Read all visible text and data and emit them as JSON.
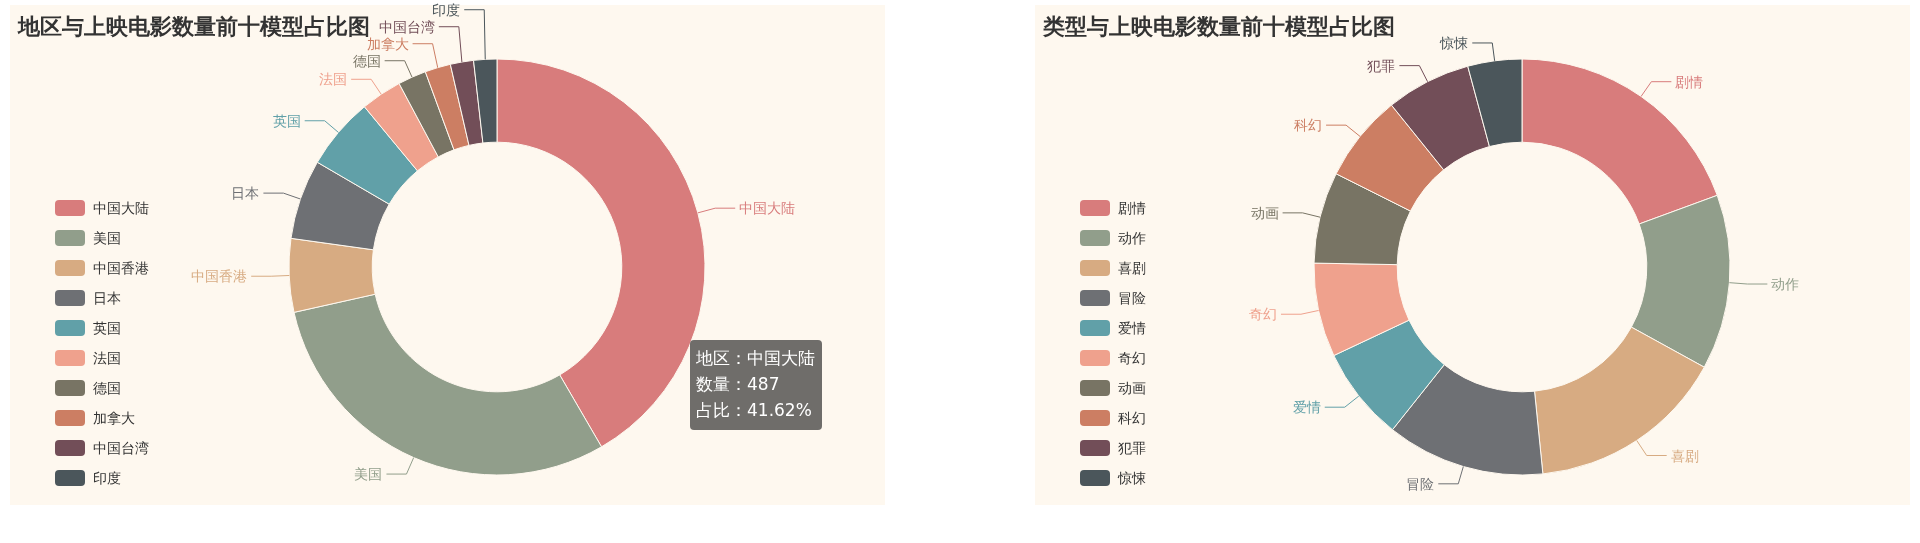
{
  "chart_data": [
    {
      "type": "donut",
      "title": "地区与上映电影数量前十模型占比图",
      "legend": "left",
      "categories": [
        "中国大陆",
        "美国",
        "中国香港",
        "日本",
        "英国",
        "法国",
        "德国",
        "加拿大",
        "中国台湾",
        "印度"
      ],
      "values": [
        41.62,
        29.88,
        5.7,
        6.2,
        5.6,
        3.2,
        2.2,
        2.0,
        1.8,
        1.8
      ],
      "colors": [
        "#d87c7c",
        "#919e8b",
        "#d7ab82",
        "#6e7074",
        "#61a0a8",
        "#efa18d",
        "#787464",
        "#cc7e63",
        "#724e58",
        "#4b565b"
      ],
      "annotations": [
        "地区：中国大陆",
        "数量：487",
        "占比：41.62%"
      ]
    },
    {
      "type": "donut",
      "title": "类型与上映电影数量前十模型占比图",
      "legend": "left",
      "categories": [
        "剧情",
        "动作",
        "喜剧",
        "冒险",
        "爱情",
        "奇幻",
        "动画",
        "科幻",
        "犯罪",
        "惊悚"
      ],
      "values": [
        19.4,
        13.6,
        15.4,
        12.3,
        7.3,
        7.3,
        7.1,
        6.8,
        6.6,
        4.2
      ],
      "colors": [
        "#d87c7c",
        "#919e8b",
        "#d7ab82",
        "#6e7074",
        "#61a0a8",
        "#efa18d",
        "#787464",
        "#cc7e63",
        "#724e58",
        "#4b565b"
      ]
    }
  ]
}
